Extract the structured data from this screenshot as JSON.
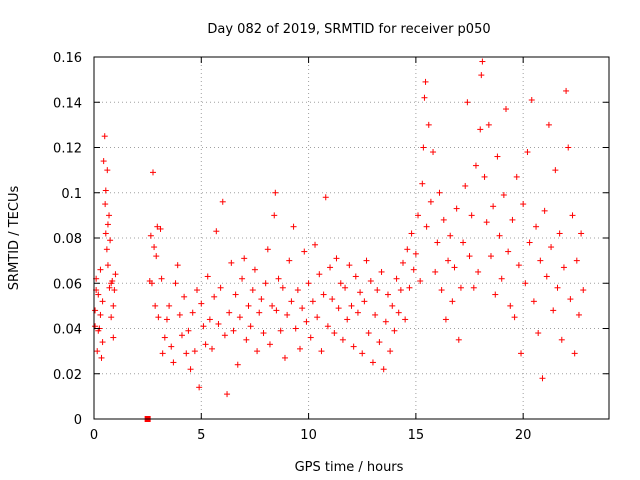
{
  "chart_data": {
    "type": "scatter",
    "title": "Day 082 of 2019, SRMTID for receiver p050",
    "xlabel": "GPS time / hours",
    "ylabel": "SRMTID / TECUs",
    "xlim": [
      0,
      24
    ],
    "ylim": [
      0,
      0.16
    ],
    "xticks": [
      0,
      5,
      10,
      15,
      20
    ],
    "xtick_labels": [
      "0",
      "5",
      "10",
      "15",
      "20"
    ],
    "yticks": [
      0,
      0.02,
      0.04,
      0.06,
      0.08,
      0.1,
      0.12,
      0.14,
      0.16
    ],
    "ytick_labels": [
      "0",
      "0.02",
      "0.04",
      "0.06",
      "0.08",
      "0.1",
      "0.12",
      "0.14",
      "0.16"
    ],
    "grid": true,
    "marker": "+",
    "color": "#ff0000",
    "outlier_points": [
      {
        "x": 2.5,
        "y": 0.0,
        "marker": "square"
      }
    ],
    "series": [
      {
        "name": "SRMTID",
        "points": [
          [
            0.05,
            0.048
          ],
          [
            0.1,
            0.062
          ],
          [
            0.15,
            0.03
          ],
          [
            0.2,
            0.055
          ],
          [
            0.25,
            0.04
          ],
          [
            0.3,
            0.066
          ],
          [
            0.35,
            0.027
          ],
          [
            0.4,
            0.052
          ],
          [
            0.45,
            0.114
          ],
          [
            0.5,
            0.125
          ],
          [
            0.52,
            0.095
          ],
          [
            0.55,
            0.082
          ],
          [
            0.6,
            0.075
          ],
          [
            0.62,
            0.11
          ],
          [
            0.65,
            0.068
          ],
          [
            0.7,
            0.09
          ],
          [
            0.72,
            0.058
          ],
          [
            0.75,
            0.079
          ],
          [
            0.8,
            0.045
          ],
          [
            0.85,
            0.061
          ],
          [
            0.9,
            0.036
          ],
          [
            0.95,
            0.057
          ],
          [
            1.0,
            0.064
          ],
          [
            0.3,
            0.046
          ],
          [
            0.4,
            0.034
          ],
          [
            0.55,
            0.101
          ],
          [
            0.65,
            0.086
          ],
          [
            0.8,
            0.06
          ],
          [
            0.9,
            0.05
          ],
          [
            0.2,
            0.039
          ],
          [
            0.1,
            0.057
          ],
          [
            0.05,
            0.041
          ],
          [
            2.6,
            0.061
          ],
          [
            2.65,
            0.081
          ],
          [
            2.7,
            0.06
          ],
          [
            2.75,
            0.109
          ],
          [
            2.8,
            0.076
          ],
          [
            2.85,
            0.05
          ],
          [
            2.9,
            0.072
          ],
          [
            2.95,
            0.085
          ],
          [
            3.0,
            0.045
          ],
          [
            3.1,
            0.084
          ],
          [
            3.15,
            0.062
          ],
          [
            3.2,
            0.029
          ],
          [
            3.3,
            0.036
          ],
          [
            3.4,
            0.044
          ],
          [
            3.5,
            0.05
          ],
          [
            3.6,
            0.032
          ],
          [
            3.7,
            0.025
          ],
          [
            3.8,
            0.06
          ],
          [
            3.9,
            0.068
          ],
          [
            4.0,
            0.046
          ],
          [
            4.1,
            0.037
          ],
          [
            4.2,
            0.054
          ],
          [
            4.3,
            0.029
          ],
          [
            4.4,
            0.039
          ],
          [
            4.5,
            0.022
          ],
          [
            4.6,
            0.047
          ],
          [
            4.7,
            0.03
          ],
          [
            4.8,
            0.057
          ],
          [
            4.9,
            0.014
          ],
          [
            5.0,
            0.051
          ],
          [
            5.1,
            0.041
          ],
          [
            5.2,
            0.033
          ],
          [
            5.3,
            0.063
          ],
          [
            5.4,
            0.044
          ],
          [
            5.5,
            0.031
          ],
          [
            5.6,
            0.054
          ],
          [
            5.7,
            0.083
          ],
          [
            5.8,
            0.042
          ],
          [
            5.9,
            0.058
          ],
          [
            6.0,
            0.096
          ],
          [
            6.1,
            0.037
          ],
          [
            6.2,
            0.011
          ],
          [
            6.3,
            0.047
          ],
          [
            6.4,
            0.069
          ],
          [
            6.5,
            0.039
          ],
          [
            6.6,
            0.055
          ],
          [
            6.7,
            0.024
          ],
          [
            6.8,
            0.045
          ],
          [
            6.9,
            0.062
          ],
          [
            7.0,
            0.071
          ],
          [
            7.1,
            0.035
          ],
          [
            7.2,
            0.05
          ],
          [
            7.3,
            0.041
          ],
          [
            7.4,
            0.057
          ],
          [
            7.5,
            0.066
          ],
          [
            7.6,
            0.03
          ],
          [
            7.7,
            0.047
          ],
          [
            7.8,
            0.053
          ],
          [
            7.9,
            0.038
          ],
          [
            8.0,
            0.06
          ],
          [
            8.1,
            0.075
          ],
          [
            8.2,
            0.033
          ],
          [
            8.3,
            0.05
          ],
          [
            8.4,
            0.09
          ],
          [
            8.45,
            0.1
          ],
          [
            8.5,
            0.048
          ],
          [
            8.6,
            0.062
          ],
          [
            8.7,
            0.039
          ],
          [
            8.8,
            0.058
          ],
          [
            8.9,
            0.027
          ],
          [
            9.0,
            0.046
          ],
          [
            9.1,
            0.07
          ],
          [
            9.2,
            0.052
          ],
          [
            9.3,
            0.085
          ],
          [
            9.4,
            0.04
          ],
          [
            9.5,
            0.057
          ],
          [
            9.6,
            0.031
          ],
          [
            9.7,
            0.049
          ],
          [
            9.8,
            0.074
          ],
          [
            9.9,
            0.043
          ],
          [
            10.0,
            0.06
          ],
          [
            10.1,
            0.036
          ],
          [
            10.2,
            0.052
          ],
          [
            10.3,
            0.077
          ],
          [
            10.4,
            0.045
          ],
          [
            10.5,
            0.064
          ],
          [
            10.6,
            0.03
          ],
          [
            10.7,
            0.055
          ],
          [
            10.8,
            0.098
          ],
          [
            10.9,
            0.041
          ],
          [
            11.0,
            0.067
          ],
          [
            11.1,
            0.053
          ],
          [
            11.2,
            0.038
          ],
          [
            11.3,
            0.071
          ],
          [
            11.4,
            0.049
          ],
          [
            11.5,
            0.06
          ],
          [
            11.6,
            0.035
          ],
          [
            11.7,
            0.058
          ],
          [
            11.8,
            0.044
          ],
          [
            11.9,
            0.068
          ],
          [
            12.0,
            0.05
          ],
          [
            12.1,
            0.032
          ],
          [
            12.2,
            0.063
          ],
          [
            12.3,
            0.047
          ],
          [
            12.4,
            0.056
          ],
          [
            12.5,
            0.029
          ],
          [
            12.6,
            0.052
          ],
          [
            12.7,
            0.07
          ],
          [
            12.8,
            0.038
          ],
          [
            12.9,
            0.061
          ],
          [
            13.0,
            0.025
          ],
          [
            13.1,
            0.046
          ],
          [
            13.2,
            0.057
          ],
          [
            13.3,
            0.034
          ],
          [
            13.4,
            0.065
          ],
          [
            13.5,
            0.022
          ],
          [
            13.6,
            0.043
          ],
          [
            13.7,
            0.055
          ],
          [
            13.8,
            0.03
          ],
          [
            13.9,
            0.05
          ],
          [
            14.0,
            0.039
          ],
          [
            14.1,
            0.062
          ],
          [
            14.2,
            0.047
          ],
          [
            14.3,
            0.057
          ],
          [
            14.4,
            0.069
          ],
          [
            14.5,
            0.044
          ],
          [
            14.6,
            0.075
          ],
          [
            14.7,
            0.058
          ],
          [
            14.8,
            0.082
          ],
          [
            14.9,
            0.066
          ],
          [
            15.0,
            0.073
          ],
          [
            15.1,
            0.09
          ],
          [
            15.2,
            0.061
          ],
          [
            15.3,
            0.104
          ],
          [
            15.35,
            0.12
          ],
          [
            15.4,
            0.142
          ],
          [
            15.45,
            0.149
          ],
          [
            15.5,
            0.085
          ],
          [
            15.6,
            0.13
          ],
          [
            15.7,
            0.096
          ],
          [
            15.8,
            0.118
          ],
          [
            15.9,
            0.065
          ],
          [
            16.0,
            0.078
          ],
          [
            16.1,
            0.1
          ],
          [
            16.2,
            0.057
          ],
          [
            16.3,
            0.088
          ],
          [
            16.4,
            0.044
          ],
          [
            16.5,
            0.07
          ],
          [
            16.6,
            0.081
          ],
          [
            16.7,
            0.052
          ],
          [
            16.8,
            0.067
          ],
          [
            16.9,
            0.093
          ],
          [
            17.0,
            0.035
          ],
          [
            17.1,
            0.058
          ],
          [
            17.2,
            0.078
          ],
          [
            17.3,
            0.103
          ],
          [
            17.4,
            0.14
          ],
          [
            17.5,
            0.072
          ],
          [
            17.6,
            0.09
          ],
          [
            17.7,
            0.058
          ],
          [
            17.8,
            0.112
          ],
          [
            17.9,
            0.065
          ],
          [
            18.0,
            0.128
          ],
          [
            18.05,
            0.152
          ],
          [
            18.1,
            0.158
          ],
          [
            18.2,
            0.107
          ],
          [
            18.3,
            0.087
          ],
          [
            18.4,
            0.13
          ],
          [
            18.5,
            0.072
          ],
          [
            18.6,
            0.094
          ],
          [
            18.7,
            0.055
          ],
          [
            18.8,
            0.116
          ],
          [
            18.9,
            0.081
          ],
          [
            19.0,
            0.062
          ],
          [
            19.1,
            0.099
          ],
          [
            19.2,
            0.137
          ],
          [
            19.3,
            0.074
          ],
          [
            19.4,
            0.05
          ],
          [
            19.5,
            0.088
          ],
          [
            19.6,
            0.045
          ],
          [
            19.7,
            0.107
          ],
          [
            19.8,
            0.068
          ],
          [
            19.9,
            0.029
          ],
          [
            20.0,
            0.095
          ],
          [
            20.1,
            0.06
          ],
          [
            20.2,
            0.118
          ],
          [
            20.3,
            0.078
          ],
          [
            20.4,
            0.141
          ],
          [
            20.5,
            0.052
          ],
          [
            20.6,
            0.085
          ],
          [
            20.7,
            0.038
          ],
          [
            20.8,
            0.07
          ],
          [
            20.9,
            0.018
          ],
          [
            21.0,
            0.092
          ],
          [
            21.1,
            0.063
          ],
          [
            21.2,
            0.13
          ],
          [
            21.3,
            0.076
          ],
          [
            21.4,
            0.048
          ],
          [
            21.5,
            0.11
          ],
          [
            21.6,
            0.058
          ],
          [
            21.7,
            0.082
          ],
          [
            21.8,
            0.035
          ],
          [
            21.9,
            0.067
          ],
          [
            22.0,
            0.145
          ],
          [
            22.1,
            0.12
          ],
          [
            22.2,
            0.053
          ],
          [
            22.3,
            0.09
          ],
          [
            22.4,
            0.029
          ],
          [
            22.5,
            0.07
          ],
          [
            22.6,
            0.046
          ],
          [
            22.7,
            0.082
          ],
          [
            22.8,
            0.057
          ]
        ]
      }
    ]
  }
}
